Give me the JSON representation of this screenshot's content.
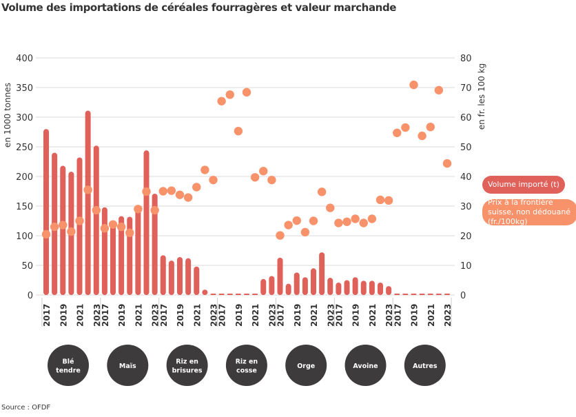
{
  "title": "Volume des importations de céréales fourragères et valeur marchande",
  "source": "Source : OFDF",
  "legend": {
    "volume": "Volume importé (t)",
    "price": "Prix à la frontière suisse, non dédouané (fr./100kg)"
  },
  "colors": {
    "bars": "#e0605a",
    "dots": "#f7926a",
    "category_circles": "#3d3b3c"
  },
  "chart_data": {
    "type": "bar+scatter",
    "title": "Volume des importations de céréales fourragères et valeur marchande",
    "ylabel_left": "en 1000 tonnes",
    "ylabel_right": "en fr. les 100 kg",
    "ylim_left": [
      0,
      400
    ],
    "ylim_right": [
      0,
      80
    ],
    "yticks_left": [
      "0",
      "50",
      "100",
      "150",
      "200",
      "250",
      "300",
      "350",
      "400"
    ],
    "yticks_right": [
      "0",
      "10",
      "20",
      "30",
      "40",
      "50",
      "60",
      "70",
      "80"
    ],
    "grid": true,
    "legend_position": "right",
    "years": [
      2017,
      2018,
      2019,
      2020,
      2021,
      2022,
      2023
    ],
    "year_tick_labels": [
      "2017",
      "2019",
      "2021",
      "2023"
    ],
    "groups": [
      {
        "name": "Blé tendre",
        "volume": [
          280,
          240,
          218,
          208,
          232,
          311,
          252
        ],
        "price": [
          20.5,
          23.0,
          23.6,
          21.4,
          25.0,
          35.5,
          28.6
        ]
      },
      {
        "name": "Maïs",
        "volume": [
          148,
          125,
          133,
          132,
          147,
          244,
          171
        ],
        "price": [
          22.5,
          23.8,
          23.0,
          21.0,
          29.0,
          34.9,
          28.6
        ]
      },
      {
        "name": "Riz en brisures",
        "volume": [
          67,
          58,
          64,
          62,
          48,
          9,
          2
        ],
        "price": [
          35.0,
          35.2,
          33.8,
          32.9,
          36.4,
          42.2,
          38.8
        ]
      },
      {
        "name": "Riz en cosse",
        "volume": [
          0,
          0,
          0,
          0,
          1,
          27,
          32
        ],
        "price": [
          65.4,
          67.6,
          55.3,
          68.4,
          39.7,
          41.8,
          38.8
        ]
      },
      {
        "name": "Orge",
        "volume": [
          63,
          19,
          38,
          30,
          45,
          72,
          29
        ],
        "price": [
          20.1,
          23.6,
          25.1,
          21.2,
          25.0,
          34.8,
          29.4
        ]
      },
      {
        "name": "Avoine",
        "volume": [
          21,
          25,
          30,
          24,
          24,
          21,
          15
        ],
        "price": [
          24.3,
          24.7,
          25.7,
          24.3,
          25.7,
          32.1,
          31.9
        ]
      },
      {
        "name": "Autres",
        "volume": [
          1,
          1,
          1,
          1,
          1,
          1,
          1
        ],
        "price": [
          54.7,
          56.5,
          70.9,
          53.7,
          56.7,
          69.1,
          44.4
        ]
      }
    ]
  }
}
